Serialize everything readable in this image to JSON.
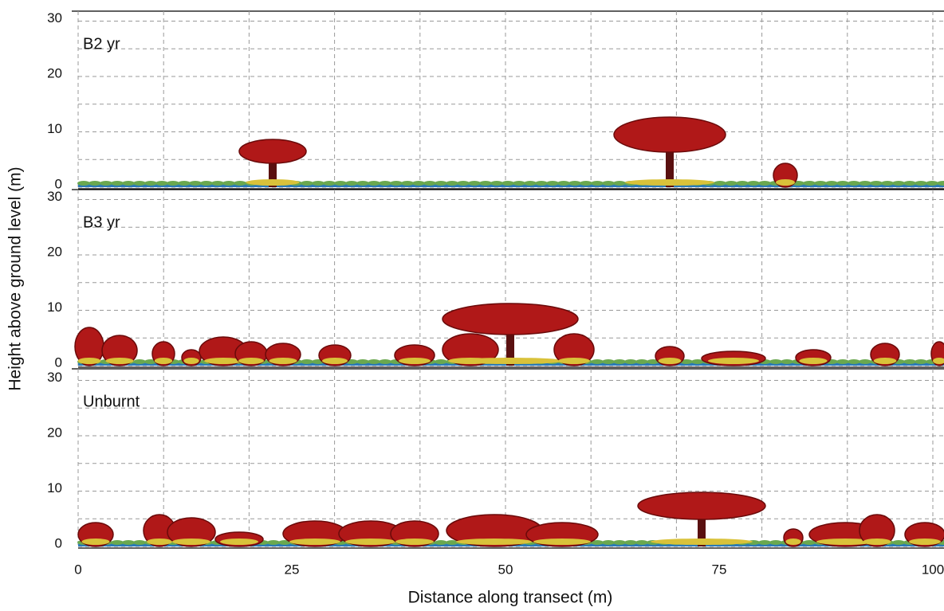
{
  "chart_data": {
    "type": "profile",
    "xlabel": "Distance along transect (m)",
    "ylabel": "Height above ground level (m)",
    "xlim": [
      0,
      100
    ],
    "ylim": [
      0,
      30
    ],
    "xticks": [
      0,
      25,
      50,
      75,
      100
    ],
    "xgrid": [
      0,
      10,
      20,
      30,
      40,
      50,
      60,
      70,
      80,
      90,
      100
    ],
    "yticks": [
      0,
      10,
      20,
      30
    ],
    "yminor": [
      5,
      15,
      25
    ],
    "grid": true,
    "panels": [
      {
        "label": "B2 yr"
      },
      {
        "label": "B3 yr"
      },
      {
        "label": "Unburnt"
      }
    ]
  }
}
